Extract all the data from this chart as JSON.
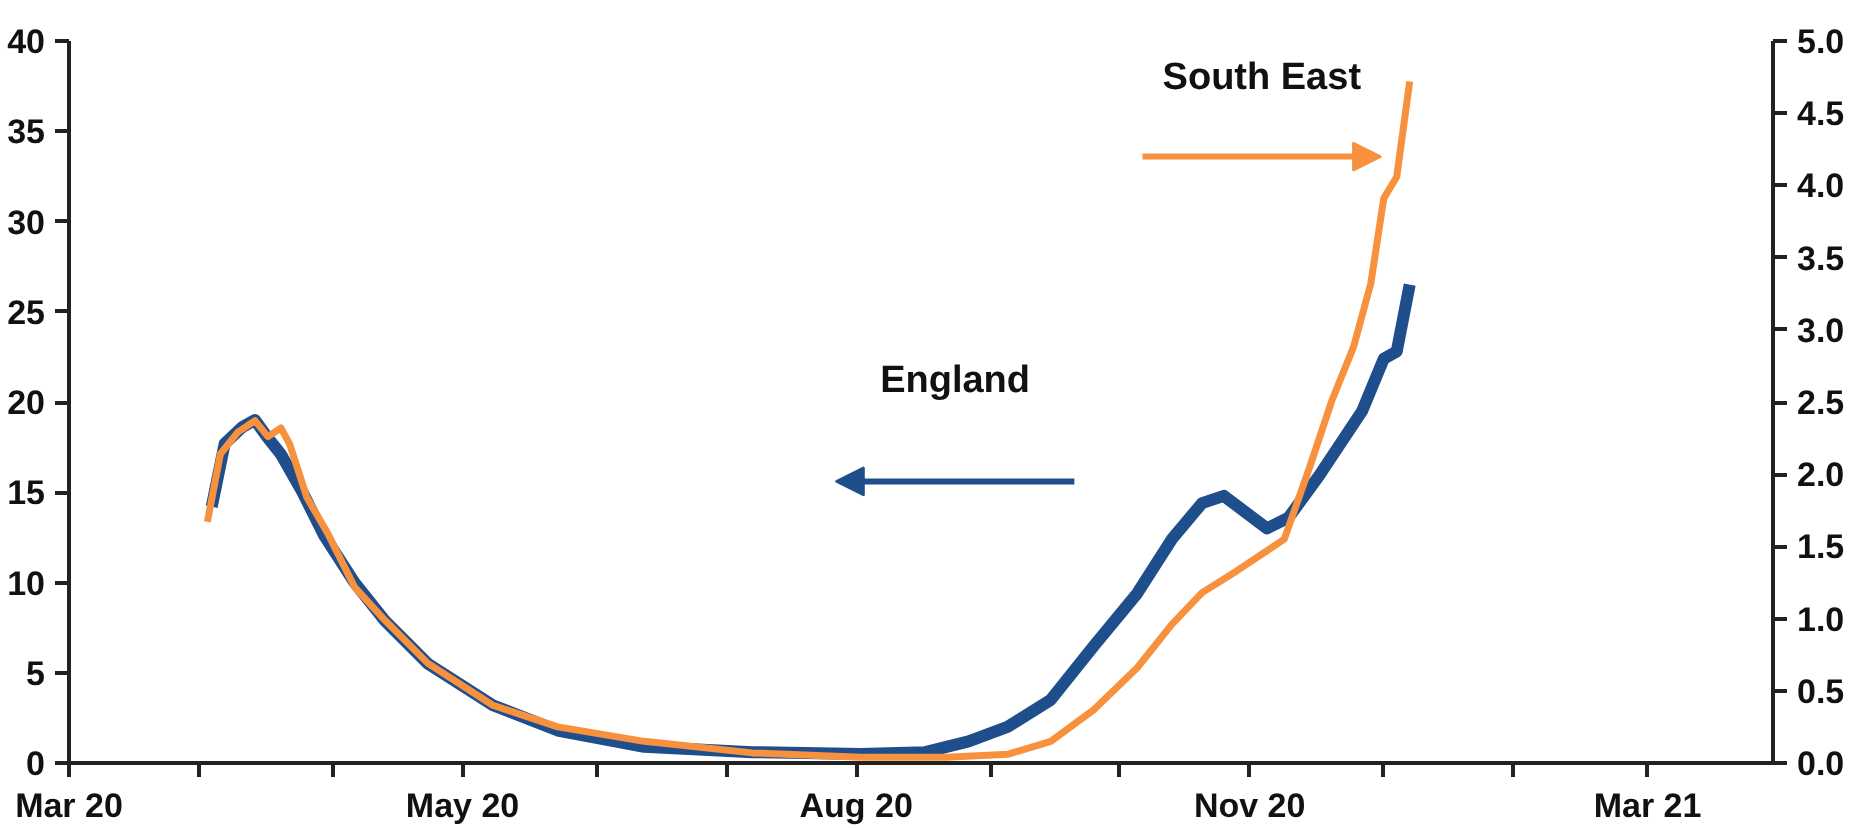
{
  "chart_data": {
    "type": "line",
    "grid": false,
    "marker": "none",
    "line_style": "solid",
    "xlim": [
      "2020-03-01",
      "2021-03-30"
    ],
    "xticks": [
      {
        "value": "2020-03-01",
        "label": "Mar 20"
      },
      {
        "value": "2020-03-31",
        "label": null
      },
      {
        "value": "2020-05-01",
        "label": null
      },
      {
        "value": "2020-05-31",
        "label": "May 20"
      },
      {
        "value": "2020-07-01",
        "label": null
      },
      {
        "value": "2020-07-31",
        "label": null
      },
      {
        "value": "2020-08-30",
        "label": "Aug 20"
      },
      {
        "value": "2020-09-30",
        "label": null
      },
      {
        "value": "2020-10-30",
        "label": null
      },
      {
        "value": "2020-11-29",
        "label": "Nov 20"
      },
      {
        "value": "2020-12-30",
        "label": null
      },
      {
        "value": "2021-01-29",
        "label": null
      },
      {
        "value": "2021-03-01",
        "label": "Mar 21"
      }
    ],
    "ylim": [
      0,
      40
    ],
    "yticks": [
      0,
      5,
      10,
      15,
      20,
      25,
      30,
      35,
      40
    ],
    "y2lim": [
      0,
      5
    ],
    "y2ticks": [
      {
        "value": 0,
        "label": "0.0"
      },
      {
        "value": 0.5,
        "label": "0.5"
      },
      {
        "value": 1,
        "label": "1.0"
      },
      {
        "value": 1.5,
        "label": "1.5"
      },
      {
        "value": 2,
        "label": "2.0"
      },
      {
        "value": 2.5,
        "label": "2.5"
      },
      {
        "value": 3,
        "label": "3.0"
      },
      {
        "value": 3.5,
        "label": "3.5"
      },
      {
        "value": 4,
        "label": "4.0"
      },
      {
        "value": 4.5,
        "label": "4.5"
      },
      {
        "value": 5,
        "label": "5.0"
      }
    ],
    "annotations": [
      "England",
      "South East"
    ],
    "series": [
      {
        "color": "#1f4e8c",
        "axis": "y",
        "x": [
          "2020-04-03",
          "2020-04-06",
          "2020-04-10",
          "2020-04-13",
          "2020-04-16",
          "2020-04-19",
          "2020-04-24",
          "2020-04-29",
          "2020-05-06",
          "2020-05-13",
          "2020-05-23",
          "2020-06-07",
          "2020-06-22",
          "2020-07-12",
          "2020-08-06",
          "2020-08-31",
          "2020-09-15",
          "2020-09-25",
          "2020-10-04",
          "2020-10-14",
          "2020-10-24",
          "2020-11-03",
          "2020-11-11",
          "2020-11-18",
          "2020-11-23",
          "2020-11-28",
          "2020-12-03",
          "2020-12-08",
          "2020-12-15",
          "2020-12-20",
          "2020-12-25",
          "2020-12-30",
          "2021-01-02",
          "2021-01-05"
        ],
        "values": [
          14.2,
          17.7,
          18.6,
          19.0,
          18.0,
          17.1,
          15.0,
          12.6,
          10.0,
          7.9,
          5.5,
          3.2,
          1.8,
          0.9,
          0.6,
          0.5,
          0.6,
          1.2,
          2.0,
          3.5,
          6.5,
          9.4,
          12.4,
          14.4,
          14.8,
          13.9,
          13.0,
          13.6,
          15.9,
          17.7,
          19.5,
          22.4,
          22.8,
          26.5
        ]
      },
      {
        "color": "#f7913d",
        "axis": "y2",
        "x": [
          "2020-04-02",
          "2020-04-05",
          "2020-04-09",
          "2020-04-13",
          "2020-04-16",
          "2020-04-19",
          "2020-04-21",
          "2020-04-25",
          "2020-04-30",
          "2020-05-06",
          "2020-05-13",
          "2020-05-23",
          "2020-06-07",
          "2020-06-22",
          "2020-07-12",
          "2020-08-06",
          "2020-08-31",
          "2020-09-20",
          "2020-10-04",
          "2020-10-14",
          "2020-10-24",
          "2020-11-03",
          "2020-11-11",
          "2020-11-18",
          "2020-11-26",
          "2020-12-03",
          "2020-12-07",
          "2020-12-13",
          "2020-12-18",
          "2020-12-23",
          "2020-12-27",
          "2020-12-30",
          "2021-01-02",
          "2021-01-05"
        ],
        "values": [
          1.67,
          2.14,
          2.29,
          2.37,
          2.26,
          2.32,
          2.21,
          1.84,
          1.58,
          1.22,
          0.99,
          0.69,
          0.4,
          0.25,
          0.15,
          0.07,
          0.04,
          0.04,
          0.06,
          0.15,
          0.37,
          0.66,
          0.96,
          1.18,
          1.33,
          1.47,
          1.55,
          2.06,
          2.51,
          2.88,
          3.32,
          3.91,
          4.06,
          4.72
        ]
      }
    ]
  }
}
